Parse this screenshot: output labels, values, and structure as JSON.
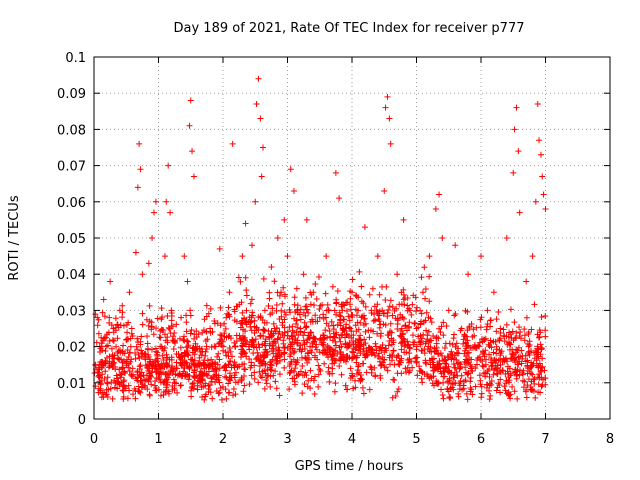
{
  "chart_data": {
    "type": "scatter",
    "title": "Day 189 of 2021, Rate Of TEC Index for receiver p777",
    "xlabel": "GPS time / hours",
    "ylabel": "ROTI / TECUs",
    "xlim": [
      0,
      8
    ],
    "ylim": [
      0,
      0.1
    ],
    "x_ticks": [
      "0",
      "1",
      "2",
      "3",
      "4",
      "5",
      "6",
      "7",
      "8"
    ],
    "y_ticks": [
      "0",
      "0.01",
      "0.02",
      "0.03",
      "0.04",
      "0.05",
      "0.06",
      "0.07",
      "0.08",
      "0.09",
      "0.1"
    ],
    "grid": true,
    "marker": "+",
    "color": "#ff0000",
    "series": [
      {
        "name": "ROTI",
        "points": [
          [
            0.02,
            0.015
          ],
          [
            0.05,
            0.028
          ],
          [
            0.08,
            0.012
          ],
          [
            0.12,
            0.02
          ],
          [
            0.15,
            0.033
          ],
          [
            0.2,
            0.01
          ],
          [
            0.25,
            0.038
          ],
          [
            0.3,
            0.025
          ],
          [
            0.35,
            0.012
          ],
          [
            0.4,
            0.03
          ],
          [
            0.45,
            0.009
          ],
          [
            0.5,
            0.022
          ],
          [
            0.55,
            0.035
          ],
          [
            0.6,
            0.014
          ],
          [
            0.65,
            0.046
          ],
          [
            0.68,
            0.064
          ],
          [
            0.7,
            0.076
          ],
          [
            0.72,
            0.069
          ],
          [
            0.75,
            0.04
          ],
          [
            0.8,
            0.018
          ],
          [
            0.85,
            0.043
          ],
          [
            0.9,
            0.05
          ],
          [
            0.93,
            0.057
          ],
          [
            0.96,
            0.06
          ],
          [
            1.0,
            0.015
          ],
          [
            1.05,
            0.02
          ],
          [
            1.1,
            0.045
          ],
          [
            1.12,
            0.06
          ],
          [
            1.15,
            0.07
          ],
          [
            1.18,
            0.057
          ],
          [
            1.2,
            0.03
          ],
          [
            1.25,
            0.008
          ],
          [
            1.3,
            0.012
          ],
          [
            1.35,
            0.028
          ],
          [
            1.4,
            0.045
          ],
          [
            1.45,
            0.038
          ],
          [
            1.48,
            0.081
          ],
          [
            1.5,
            0.088
          ],
          [
            1.52,
            0.074
          ],
          [
            1.55,
            0.067
          ],
          [
            1.6,
            0.02
          ],
          [
            1.7,
            0.015
          ],
          [
            1.8,
            0.025
          ],
          [
            1.9,
            0.012
          ],
          [
            1.95,
            0.047
          ],
          [
            2.0,
            0.02
          ],
          [
            2.05,
            0.028
          ],
          [
            2.1,
            0.035
          ],
          [
            2.15,
            0.076
          ],
          [
            2.2,
            0.015
          ],
          [
            2.3,
            0.045
          ],
          [
            2.35,
            0.054
          ],
          [
            2.4,
            0.02
          ],
          [
            2.45,
            0.048
          ],
          [
            2.5,
            0.06
          ],
          [
            2.52,
            0.087
          ],
          [
            2.55,
            0.094
          ],
          [
            2.58,
            0.083
          ],
          [
            2.6,
            0.067
          ],
          [
            2.62,
            0.075
          ],
          [
            2.65,
            0.03
          ],
          [
            2.7,
            0.012
          ],
          [
            2.75,
            0.042
          ],
          [
            2.8,
            0.025
          ],
          [
            2.85,
            0.05
          ],
          [
            2.9,
            0.035
          ],
          [
            2.95,
            0.055
          ],
          [
            3.0,
            0.045
          ],
          [
            3.05,
            0.069
          ],
          [
            3.1,
            0.063
          ],
          [
            3.15,
            0.03
          ],
          [
            3.2,
            0.025
          ],
          [
            3.25,
            0.04
          ],
          [
            3.3,
            0.055
          ],
          [
            3.35,
            0.02
          ],
          [
            3.4,
            0.035
          ],
          [
            3.5,
            0.028
          ],
          [
            3.6,
            0.045
          ],
          [
            3.7,
            0.018
          ],
          [
            3.75,
            0.068
          ],
          [
            3.8,
            0.061
          ],
          [
            3.85,
            0.03
          ],
          [
            3.9,
            0.025
          ],
          [
            4.0,
            0.035
          ],
          [
            4.1,
            0.02
          ],
          [
            4.2,
            0.053
          ],
          [
            4.3,
            0.03
          ],
          [
            4.4,
            0.045
          ],
          [
            4.5,
            0.063
          ],
          [
            4.52,
            0.086
          ],
          [
            4.55,
            0.089
          ],
          [
            4.58,
            0.083
          ],
          [
            4.6,
            0.076
          ],
          [
            4.7,
            0.04
          ],
          [
            4.8,
            0.055
          ],
          [
            4.9,
            0.03
          ],
          [
            5.0,
            0.025
          ],
          [
            5.1,
            0.035
          ],
          [
            5.2,
            0.045
          ],
          [
            5.3,
            0.058
          ],
          [
            5.35,
            0.062
          ],
          [
            5.4,
            0.05
          ],
          [
            5.5,
            0.03
          ],
          [
            5.6,
            0.048
          ],
          [
            5.7,
            0.025
          ],
          [
            5.8,
            0.04
          ],
          [
            5.9,
            0.02
          ],
          [
            6.0,
            0.045
          ],
          [
            6.1,
            0.03
          ],
          [
            6.2,
            0.035
          ],
          [
            6.3,
            0.025
          ],
          [
            6.4,
            0.05
          ],
          [
            6.5,
            0.068
          ],
          [
            6.52,
            0.08
          ],
          [
            6.55,
            0.086
          ],
          [
            6.58,
            0.074
          ],
          [
            6.6,
            0.057
          ],
          [
            6.7,
            0.038
          ],
          [
            6.8,
            0.045
          ],
          [
            6.85,
            0.06
          ],
          [
            6.88,
            0.087
          ],
          [
            6.9,
            0.077
          ],
          [
            6.93,
            0.073
          ],
          [
            6.95,
            0.067
          ],
          [
            6.97,
            0.062
          ],
          [
            7.0,
            0.058
          ]
        ],
        "baseline_band": {
          "x_range": [
            0,
            7.0
          ],
          "y_range": [
            0.005,
            0.032
          ],
          "note": "dense cloud of points between ~0.005 and ~0.032 throughout 0–7 h"
        }
      }
    ]
  }
}
